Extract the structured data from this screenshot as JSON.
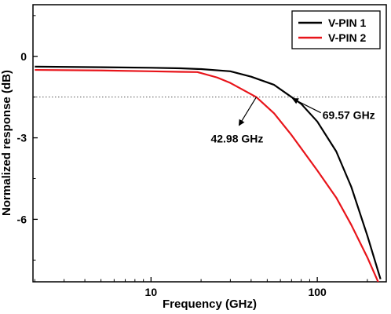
{
  "chart_data": {
    "type": "line",
    "xlabel": "Frequency (GHz)",
    "ylabel": "Normalized response (dB)",
    "x_scale": "log",
    "xlim": [
      1.95,
      260
    ],
    "ylim": [
      -8.3,
      1.9
    ],
    "x_ticks": [
      10,
      100
    ],
    "x_tick_labels": [
      "10",
      "100"
    ],
    "y_ticks": [
      0,
      -3,
      -6
    ],
    "y_tick_labels": [
      "0",
      "-3",
      "-6"
    ],
    "legend_position": "top-right",
    "grid": false,
    "reference_line": {
      "y": -1.5,
      "style": "dotted"
    },
    "series": [
      {
        "name": "V-PIN 1",
        "color": "#000000",
        "x": [
          2,
          5,
          10,
          15,
          20,
          30,
          40,
          55,
          70,
          80,
          100,
          130,
          160,
          200,
          240
        ],
        "y": [
          -0.38,
          -0.4,
          -0.42,
          -0.44,
          -0.47,
          -0.55,
          -0.75,
          -1.05,
          -1.5,
          -1.75,
          -2.4,
          -3.5,
          -4.8,
          -6.6,
          -8.2
        ]
      },
      {
        "name": "V-PIN 2",
        "color": "#e8141a",
        "x": [
          2,
          5,
          10,
          15,
          19,
          25,
          30,
          42.98,
          55,
          70,
          100,
          130,
          160,
          200,
          240
        ],
        "y": [
          -0.5,
          -0.52,
          -0.55,
          -0.57,
          -0.58,
          -0.78,
          -0.98,
          -1.5,
          -2.1,
          -2.9,
          -4.2,
          -5.2,
          -6.2,
          -7.4,
          -8.5
        ]
      }
    ],
    "annotations": [
      {
        "text": "42.98 GHz",
        "x": 42.98,
        "y": -1.5
      },
      {
        "text": "69.57 GHz",
        "x": 69.57,
        "y": -1.5
      }
    ]
  }
}
